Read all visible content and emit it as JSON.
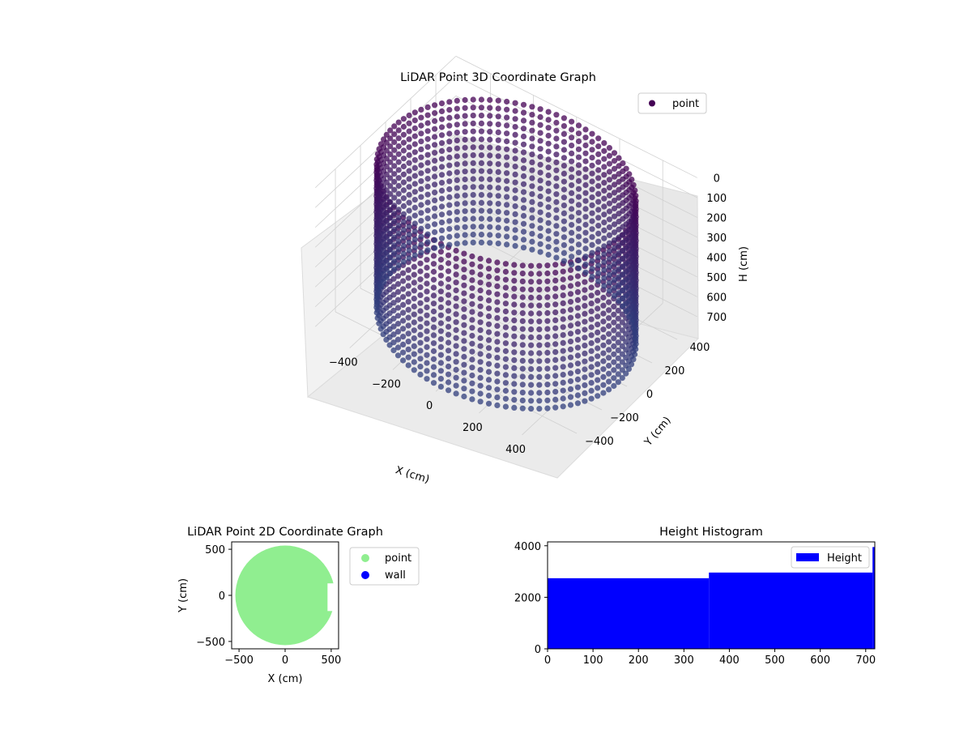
{
  "chart_data": [
    {
      "type": "scatter",
      "projection": "3d",
      "title": "LiDAR Point 3D Coordinate Graph",
      "xlabel": "X (cm)",
      "ylabel": "Y (cm)",
      "zlabel": "H (cm)",
      "xlim": [
        -560,
        560
      ],
      "ylim": [
        -560,
        560
      ],
      "zlim": [
        720,
        0
      ],
      "xticks": [
        "−400",
        "−200",
        "0",
        "200",
        "400"
      ],
      "yticks": [
        "−400",
        "−200",
        "0",
        "200",
        "400"
      ],
      "zticks": [
        "0",
        "100",
        "200",
        "300",
        "400",
        "500",
        "600",
        "700"
      ],
      "series": [
        {
          "name": "point",
          "color": "#440154",
          "shape": "cylindrical wall of points, radius ~520 cm, height 0-720 cm",
          "radius": 520,
          "height_range": [
            0,
            720
          ]
        }
      ],
      "legend": "top-right",
      "grid": true
    },
    {
      "type": "scatter",
      "title": "LiDAR Point 2D Coordinate Graph",
      "xlabel": "X (cm)",
      "ylabel": "Y (cm)",
      "xlim": [
        -580,
        580
      ],
      "ylim": [
        -580,
        580
      ],
      "xticks": [
        "−500",
        "0",
        "500"
      ],
      "yticks": [
        "−500",
        "0",
        "500"
      ],
      "series": [
        {
          "name": "point",
          "color": "#90ee90"
        },
        {
          "name": "wall",
          "color": "#0000ff"
        }
      ],
      "legend": "outside-right"
    },
    {
      "type": "bar",
      "title": "Height Histogram",
      "xlabel": "",
      "ylabel": "",
      "xlim": [
        0,
        720
      ],
      "ylim": [
        0,
        4150
      ],
      "xticks": [
        "0",
        "100",
        "200",
        "300",
        "400",
        "500",
        "600",
        "700"
      ],
      "yticks": [
        "0",
        "2000",
        "4000"
      ],
      "bins": [
        {
          "from": 0,
          "to": 355,
          "count": 2740
        },
        {
          "from": 355,
          "to": 715,
          "count": 2960
        },
        {
          "from": 715,
          "to": 720,
          "count": 3950
        }
      ],
      "series": [
        {
          "name": "Height",
          "color": "#0000ff"
        }
      ],
      "legend": "top-right"
    }
  ]
}
